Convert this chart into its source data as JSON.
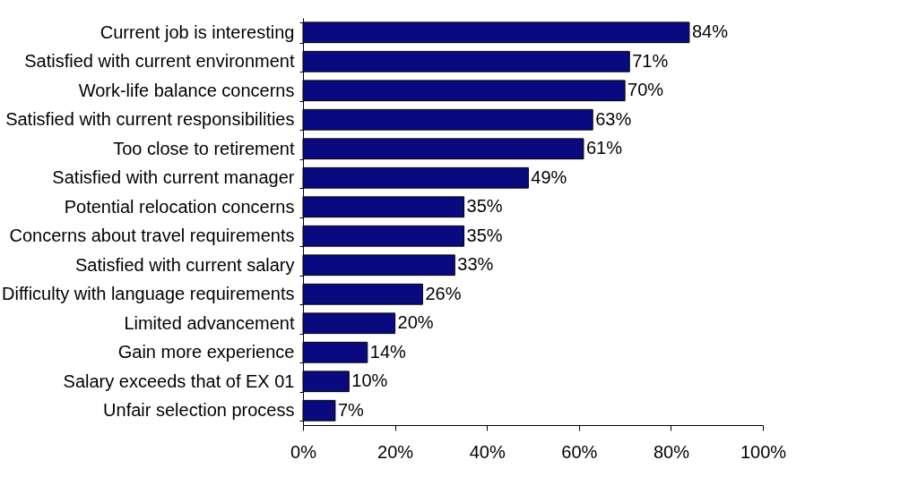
{
  "chart_data": {
    "type": "bar",
    "orientation": "horizontal",
    "categories": [
      "Current job is interesting",
      "Satisfied with current environment",
      "Work-life balance concerns",
      "Satisfied  with current responsibilities",
      "Too close to retirement",
      "Satisfied with current manager",
      "Potential relocation concerns",
      "Concerns about travel requirements",
      "Satisfied with current salary",
      "Difficulty with language requirements",
      "Limited advancement",
      "Gain more experience",
      "Salary exceeds that of EX 01",
      "Unfair selection process"
    ],
    "values": [
      84,
      71,
      70,
      63,
      61,
      49,
      35,
      35,
      33,
      26,
      20,
      14,
      10,
      7
    ],
    "value_labels": [
      "84%",
      "71%",
      "70%",
      "63%",
      "61%",
      "49%",
      "35%",
      "35%",
      "33%",
      "26%",
      "20%",
      "14%",
      "10%",
      "7%"
    ],
    "color": "#0a0a80",
    "xlim": [
      0,
      100
    ],
    "xticks": [
      {
        "value": 0,
        "label": "0%"
      },
      {
        "value": 20,
        "label": "20%"
      },
      {
        "value": 40,
        "label": "40%"
      },
      {
        "value": 60,
        "label": "60%"
      },
      {
        "value": 80,
        "label": "80%"
      },
      {
        "value": 100,
        "label": "100%"
      }
    ]
  }
}
